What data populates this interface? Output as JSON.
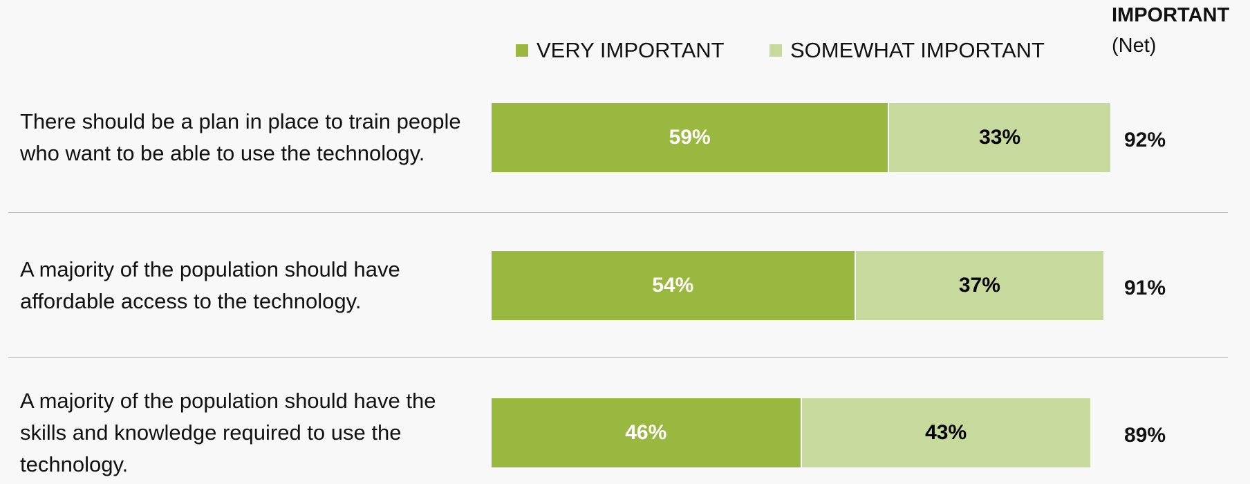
{
  "chart_data": {
    "type": "stacked-bar-horizontal",
    "categories": [
      "There should be a plan in place to train people who want to be able to use the technology.",
      "A majority of the population should have affordable access to the technology.",
      "A majority of the population should have the skills and knowledge required to use the technology."
    ],
    "series": [
      {
        "name": "VERY IMPORTANT",
        "color": "#9ab840",
        "label_color": "#ffffff",
        "values": [
          59,
          54,
          46
        ],
        "value_labels": [
          "59%",
          "54%",
          "46%"
        ]
      },
      {
        "name": "SOMEWHAT IMPORTANT",
        "color": "#c7d99c",
        "label_color": "#000000",
        "values": [
          33,
          37,
          43
        ],
        "value_labels": [
          "33%",
          "37%",
          "43%"
        ]
      }
    ],
    "net": {
      "title": "IMPORTANT",
      "subtitle": "(Net)",
      "values": [
        92,
        91,
        89
      ],
      "value_labels": [
        "92%",
        "91%",
        "89%"
      ]
    }
  }
}
